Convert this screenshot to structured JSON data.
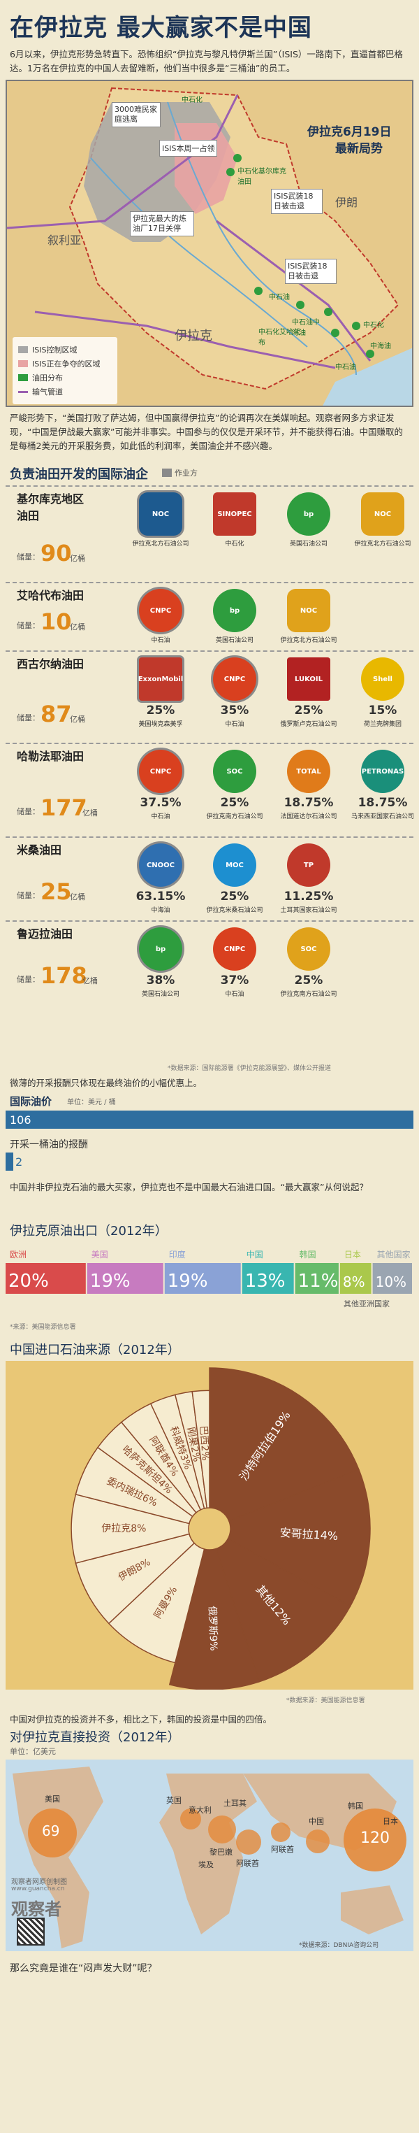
{
  "header": {
    "title": "在伊拉克 最大赢家不是中国",
    "intro": "6月以来，伊拉克形势急转直下。恐怖组织“伊拉克与黎凡特伊斯兰国”（ISIS）一路南下，直逼首都巴格达。1万名在伊拉克的中国人去留难断，他们当中很多是“三桶油”的员工。"
  },
  "map": {
    "title_line1": "伊拉克6月19日",
    "title_line2": "最新局势",
    "labels": [
      "叙利亚",
      "伊朗",
      "伊拉克"
    ],
    "callouts": [
      "3000难民家庭逃离",
      "ISIS本周一占领",
      "伊拉克最大的炼油厂17日关停",
      "ISIS武装18日被击退",
      "ISIS武装18日被击退"
    ],
    "company_labels": [
      "中石化",
      "中石化基尔库克油田",
      "中石油",
      "中石油中海油",
      "中石化",
      "中海油",
      "中石油",
      "中石化艾哈代布"
    ],
    "legend": [
      {
        "label": "ISIS控制区域",
        "color": "#a7a7a7"
      },
      {
        "label": "ISIS正在争夺的区域",
        "color": "#e8a3a3"
      },
      {
        "label": "油田分布",
        "color": "#2e9d3e"
      },
      {
        "label": "输气管道",
        "color": "#9b5fb0"
      }
    ],
    "colors": {
      "sea": "#b9d7e6",
      "land": "#e6c98b",
      "isis": "#a7a7a7",
      "contest": "#e8a3a3",
      "oil": "#2e9d3e",
      "pipe": "#9b5fb0",
      "border": "#c0392b"
    }
  },
  "text1": "严峻形势下，“美国打败了萨达姆，但中国赢得伊拉克”的论调再次在美媒响起。观察者网多方求证发现，“中国是伊战最大赢家”可能并非事实。中国参与的仅仅是开采环节，并不能获得石油。中国赚取的是每桶2美元的开采服务费，如此低的利润率，美国油企并不感兴趣。",
  "fields_section": {
    "title": "负责油田开发的国际油企",
    "legend_label": "作业方",
    "production_label": "储量：",
    "unit": "亿桶",
    "source": "*数据来源：国际能源署《伊拉克能源展望》、媒体公开报道",
    "fields": [
      {
        "name_line1": "基尔库克地区",
        "name_line2": "油田",
        "production": "90",
        "companies": [
          {
            "name": "伊拉克北方石油公司",
            "pct": "",
            "logo": "NOC",
            "color": "#1d5a8f"
          },
          {
            "name": "中石化",
            "pct": "",
            "logo": "SINOPEC",
            "color": "#c0392b"
          },
          {
            "name": "英国石油公司",
            "pct": "",
            "logo": "bp",
            "color": "#2e9d3e"
          },
          {
            "name": "伊拉克北方石油公司",
            "pct": "",
            "logo": "NOC",
            "color": "#e0a21b"
          }
        ]
      },
      {
        "name_line1": "艾哈代布油田",
        "name_line2": "",
        "production": "10",
        "companies": [
          {
            "name": "中石油",
            "pct": "",
            "logo": "CNPC",
            "color": "#d9401f"
          },
          {
            "name": "英国石油公司",
            "pct": "",
            "logo": "bp",
            "color": "#2e9d3e"
          },
          {
            "name": "伊拉克北方石油公司",
            "pct": "",
            "logo": "NOC",
            "color": "#e0a21b"
          }
        ]
      },
      {
        "name_line1": "西古尔纳油田",
        "name_line2": "",
        "production": "87",
        "companies": [
          {
            "name": "美国埃克森美孚",
            "pct": "25%",
            "logo": "ExxonMobil",
            "color": "#c0392b"
          },
          {
            "name": "中石油",
            "pct": "35%",
            "logo": "CNPC",
            "color": "#d9401f"
          },
          {
            "name": "俄罗斯卢克石油公司",
            "pct": "25%",
            "logo": "LUKOIL",
            "color": "#b22222"
          },
          {
            "name": "荷兰壳牌集团",
            "pct": "15%",
            "logo": "Shell",
            "color": "#e8b800"
          }
        ]
      },
      {
        "name_line1": "哈勒法耶油田",
        "name_line2": "",
        "production": "177",
        "companies": [
          {
            "name": "中石油",
            "pct": "37.5%",
            "logo": "CNPC",
            "color": "#d9401f"
          },
          {
            "name": "伊拉克南方石油公司",
            "pct": "25%",
            "logo": "SOC",
            "color": "#2e9d3e"
          },
          {
            "name": "法国道达尔石油公司",
            "pct": "18.75%",
            "logo": "TOTAL",
            "color": "#e07b1a"
          },
          {
            "name": "马来西亚国家石油公司",
            "pct": "18.75%",
            "logo": "PETRONAS",
            "color": "#1a8f7a"
          }
        ]
      },
      {
        "name_line1": "米桑油田",
        "name_line2": "",
        "production": "25",
        "companies": [
          {
            "name": "中海油",
            "pct": "63.15%",
            "logo": "CNOOC",
            "color": "#2f6fb0"
          },
          {
            "name": "伊拉克米桑石油公司",
            "pct": "25%",
            "logo": "MOC",
            "color": "#1d8fd0"
          },
          {
            "name": "土耳其国家石油公司",
            "pct": "11.25%",
            "logo": "TP",
            "color": "#c0392b"
          }
        ]
      },
      {
        "name_line1": "鲁迈拉油田",
        "name_line2": "",
        "production": "178",
        "companies": [
          {
            "name": "英国石油公司",
            "pct": "38%",
            "logo": "bp",
            "color": "#2e9d3e"
          },
          {
            "name": "中石油",
            "pct": "37%",
            "logo": "CNPC",
            "color": "#d9401f"
          },
          {
            "name": "伊拉克南方石油公司",
            "pct": "25%",
            "logo": "SOC",
            "color": "#e0a21b"
          }
        ]
      }
    ]
  },
  "price_section": {
    "intro": "微薄的开采报酬只体现在最终油价的小幅优惠上。",
    "title": "国际油价",
    "unit": "单位：美元 / 桶",
    "price_value": "106",
    "reward_title": "开采一桶油的报酬",
    "reward_value": "2",
    "color": "#2e6e9f"
  },
  "text2": "中国并非伊拉克石油的最大买家，伊拉克也不是中国最大石油进口国。“最大赢家”从何说起？",
  "export_section": {
    "title": "伊拉克原油出口（2012年）",
    "source": "*来源：美国能源信息署",
    "other_note": "其他亚洲国家"
  },
  "import_section": {
    "title": "中国进口石油来源（2012年）",
    "source": "*数据来源：美国能源信息署",
    "colors": {
      "highlight": "#8b4a2b",
      "normal": "#f6ecd0",
      "bg": "#e9c776"
    }
  },
  "text3": "中国对伊拉克的投资并不多，相比之下，韩国的投资是中国的四倍。",
  "invest_section": {
    "title": "对伊拉克直接投资（2012年）",
    "unit": "单位：亿美元",
    "country_labels": [
      "美国",
      "英国",
      "意大利",
      "土耳其",
      "韩国",
      "日本",
      "中国",
      "阿联酋",
      "黎巴嫩",
      "阿联酋",
      "埃及"
    ],
    "bubble_values": [
      "69",
      "120"
    ],
    "source": "*数据来源：DBNIA咨询公司"
  },
  "footer": {
    "brand_small": "观察者网原创制图",
    "brand_url": "www.guancha.cn",
    "brand_name": "观察者",
    "question": "那么究竟是谁在“闷声发大财”呢？"
  },
  "chart_data": [
    {
      "type": "bar",
      "title": "伊拉克原油出口（2012年）",
      "categories": [
        "欧洲",
        "美国",
        "印度",
        "中国",
        "韩国",
        "日本",
        "其他国家"
      ],
      "values": [
        20,
        19,
        19,
        13,
        11,
        8,
        10
      ],
      "colors": [
        "#d94b4b",
        "#c77bc0",
        "#8aa2d6",
        "#39b6b0",
        "#66bb6a",
        "#aac84b",
        "#9aa5b1"
      ]
    },
    {
      "type": "pie",
      "title": "中国进口石油来源（2012年）",
      "categories": [
        "沙特阿拉伯",
        "安哥拉",
        "其他",
        "俄罗斯",
        "阿曼",
        "伊朗",
        "伊拉克",
        "委内瑞拉",
        "哈萨克斯坦",
        "阿联酋",
        "科威特",
        "刚果",
        "巴西"
      ],
      "values": [
        19,
        14,
        12,
        9,
        9,
        8,
        8,
        6,
        4,
        4,
        3,
        2,
        2
      ],
      "highlight": [
        true,
        true,
        true,
        true,
        false,
        false,
        false,
        false,
        false,
        false,
        false,
        false,
        false
      ]
    },
    {
      "type": "bar",
      "title": "国际油价",
      "categories": [
        "国际油价",
        "开采一桶油的报酬"
      ],
      "values": [
        106,
        2
      ],
      "unit": "单位：美元 / 桶"
    }
  ]
}
